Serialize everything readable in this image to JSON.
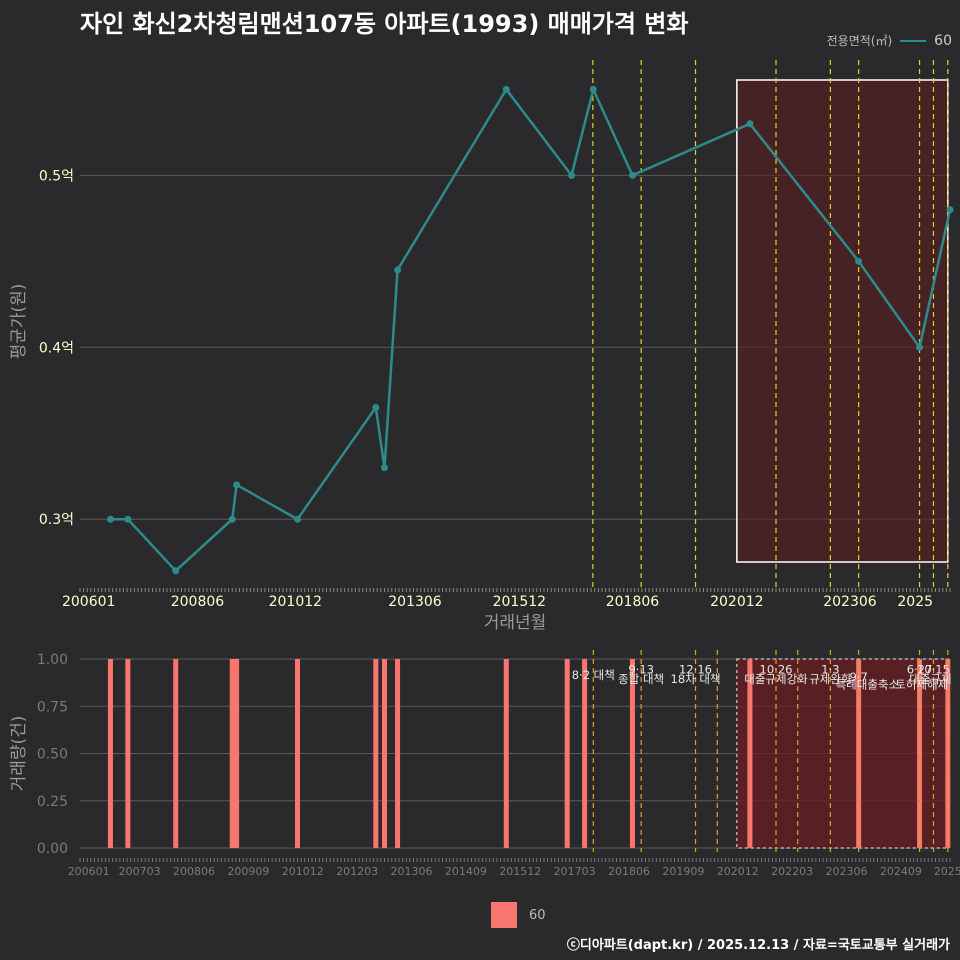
{
  "title": "자인 화신2차청림맨션107동 아파트(1993) 매매가격 변화",
  "legend_top": {
    "label": "전용면적(㎡)",
    "value": "60"
  },
  "legend_bottom": {
    "value": "60"
  },
  "credit": "ⓒ디아파트(dapt.kr) / 2025.12.13 / 자료=국토교통부 실거래가",
  "chart_data": [
    {
      "type": "line",
      "ylabel": "평균가(원)",
      "xlabel": "거래년월",
      "ylim": [
        0.26,
        0.57
      ],
      "xlim": [
        2005.8,
        2025.8
      ],
      "y_ticks": [
        {
          "v": 0.3,
          "label": "0.3억"
        },
        {
          "v": 0.4,
          "label": "0.4억"
        },
        {
          "v": 0.5,
          "label": "0.5억"
        }
      ],
      "x_ticks": [
        {
          "v": 2006.0,
          "label": "200601"
        },
        {
          "v": 2008.5,
          "label": "200806"
        },
        {
          "v": 2010.75,
          "label": "201012"
        },
        {
          "v": 2013.5,
          "label": "201306"
        },
        {
          "v": 2015.9,
          "label": "201512"
        },
        {
          "v": 2018.5,
          "label": "201806"
        },
        {
          "v": 2020.9,
          "label": "202012"
        },
        {
          "v": 2023.5,
          "label": "202306"
        },
        {
          "v": 2025.0,
          "label": "2025"
        }
      ],
      "series": [
        {
          "name": "60",
          "color": "#2e8b8b",
          "x": [
            2006.5,
            2006.9,
            2008.0,
            2009.3,
            2009.4,
            2010.8,
            2012.6,
            2012.8,
            2013.1,
            2015.6,
            2017.1,
            2017.6,
            2018.5,
            2021.2,
            2023.7,
            2025.1,
            2025.8
          ],
          "y": [
            0.3,
            0.3,
            0.27,
            0.3,
            0.32,
            0.3,
            0.365,
            0.33,
            0.445,
            0.55,
            0.5,
            0.55,
            0.5,
            0.53,
            0.45,
            0.4,
            0.48
          ]
        }
      ],
      "policy_lines": [
        2017.59,
        2018.7,
        2019.95,
        2021.8,
        2023.05,
        2023.7,
        2025.1,
        2025.42,
        2025.75
      ],
      "highlight_range": [
        2020.9,
        2025.75
      ]
    },
    {
      "type": "bar",
      "ylabel": "거래량(건)",
      "ylim": [
        0,
        1.0
      ],
      "y_ticks": [
        {
          "v": 0.0,
          "label": "0.00"
        },
        {
          "v": 0.25,
          "label": "0.25"
        },
        {
          "v": 0.5,
          "label": "0.50"
        },
        {
          "v": 0.75,
          "label": "0.75"
        },
        {
          "v": 1.0,
          "label": "1.00"
        }
      ],
      "xlim": [
        2005.8,
        2025.8
      ],
      "x_ticks": [
        {
          "v": 2006.0,
          "label": "200601"
        },
        {
          "v": 2007.17,
          "label": "200703"
        },
        {
          "v": 2008.42,
          "label": "200806"
        },
        {
          "v": 2009.67,
          "label": "200909"
        },
        {
          "v": 2010.92,
          "label": "201012"
        },
        {
          "v": 2012.17,
          "label": "201203"
        },
        {
          "v": 2013.42,
          "label": "201306"
        },
        {
          "v": 2014.67,
          "label": "201409"
        },
        {
          "v": 2015.92,
          "label": "201512"
        },
        {
          "v": 2017.17,
          "label": "201703"
        },
        {
          "v": 2018.42,
          "label": "201806"
        },
        {
          "v": 2019.67,
          "label": "201909"
        },
        {
          "v": 2020.92,
          "label": "202012"
        },
        {
          "v": 2022.17,
          "label": "202203"
        },
        {
          "v": 2023.42,
          "label": "202306"
        },
        {
          "v": 2024.67,
          "label": "202409"
        },
        {
          "v": 2025.75,
          "label": "2025"
        }
      ],
      "series": [
        {
          "name": "60",
          "color": "#f8766d",
          "x": [
            2006.5,
            2006.9,
            2008.0,
            2009.3,
            2009.4,
            2010.8,
            2012.6,
            2012.8,
            2013.1,
            2015.6,
            2017.0,
            2017.4,
            2018.5,
            2021.2,
            2023.7,
            2025.1,
            2025.75
          ],
          "values": [
            1,
            1,
            1,
            1,
            1,
            1,
            1,
            1,
            1,
            1,
            1,
            1,
            1,
            1,
            1,
            1,
            1
          ]
        }
      ],
      "policy_lines": [
        2017.6,
        2018.7,
        2019.95,
        2020.45,
        2021.8,
        2022.3,
        2023.05,
        2023.7,
        2025.1,
        2025.42,
        2025.75
      ],
      "highlight_range": [
        2020.9,
        2025.75
      ],
      "annotations": [
        {
          "x": 2017.6,
          "row": 2,
          "text": "8·2 대책"
        },
        {
          "x": 2018.7,
          "row": 1,
          "text": "9·13"
        },
        {
          "x": 2018.7,
          "row": 2.7,
          "text": "종합 대책"
        },
        {
          "x": 2019.95,
          "row": 1,
          "text": "12·16"
        },
        {
          "x": 2019.95,
          "row": 2.7,
          "text": "18차 대책"
        },
        {
          "x": 2021.8,
          "row": 1,
          "text": "10·26"
        },
        {
          "x": 2021.8,
          "row": 2.7,
          "text": "대출규제강화"
        },
        {
          "x": 2023.05,
          "row": 1,
          "text": "1·3"
        },
        {
          "x": 2023.05,
          "row": 2.7,
          "text": "규제완화"
        },
        {
          "x": 2023.7,
          "row": 2.4,
          "text": "9·7"
        },
        {
          "x": 2023.9,
          "row": 3.7,
          "text": "특례대출축소"
        },
        {
          "x": 2025.1,
          "row": 1,
          "text": "6·27"
        },
        {
          "x": 2025.42,
          "row": 1,
          "text": "10·15"
        },
        {
          "x": 2025.35,
          "row": 2.7,
          "text": "대출규제"
        },
        {
          "x": 2025.15,
          "row": 3.7,
          "text": "토허제해제"
        }
      ]
    }
  ]
}
